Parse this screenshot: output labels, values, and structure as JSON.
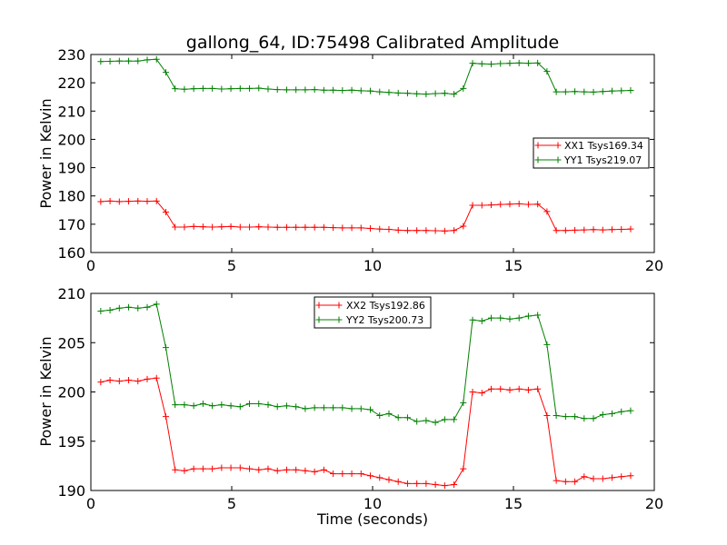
{
  "title": "gallong_64, ID:75498 Calibrated Amplitude",
  "colors": {
    "xx": "#ff0000",
    "yy": "#008000"
  },
  "chart_data": [
    {
      "type": "line",
      "ylabel": "Power in Kelvin",
      "xlabel": "",
      "xlim": [
        0,
        20
      ],
      "ylim": [
        160,
        230
      ],
      "xticks": [
        "0",
        "5",
        "10",
        "15",
        "20"
      ],
      "yticks": [
        "160",
        "170",
        "180",
        "190",
        "200",
        "210",
        "220",
        "230"
      ],
      "legend_position": "center-right",
      "x": [
        0.35,
        0.68,
        1.01,
        1.34,
        1.67,
        2.0,
        2.33,
        2.66,
        2.99,
        3.32,
        3.65,
        3.98,
        4.31,
        4.64,
        4.97,
        5.3,
        5.63,
        5.96,
        6.29,
        6.62,
        6.95,
        7.28,
        7.61,
        7.94,
        8.27,
        8.6,
        8.93,
        9.26,
        9.59,
        9.92,
        10.25,
        10.58,
        10.91,
        11.24,
        11.57,
        11.9,
        12.23,
        12.56,
        12.89,
        13.22,
        13.55,
        13.88,
        14.21,
        14.54,
        14.87,
        15.2,
        15.53,
        15.86,
        16.19,
        16.52,
        16.85,
        17.18,
        17.51,
        17.84,
        18.17,
        18.5,
        18.83,
        19.16
      ],
      "series": [
        {
          "name": "XX1 Tsys169.34",
          "color": "#ff0000",
          "values": [
            178.0,
            178.2,
            178.0,
            178.1,
            178.2,
            178.1,
            178.2,
            174.3,
            169.0,
            169.0,
            169.2,
            169.1,
            169.0,
            169.1,
            169.2,
            169.0,
            169.0,
            169.1,
            169.0,
            168.9,
            168.9,
            168.9,
            168.9,
            168.9,
            168.9,
            168.8,
            168.7,
            168.7,
            168.7,
            168.5,
            168.3,
            168.2,
            167.9,
            167.8,
            167.8,
            167.8,
            167.7,
            167.6,
            167.8,
            169.3,
            176.7,
            176.7,
            176.8,
            177.0,
            177.1,
            177.2,
            177.0,
            177.1,
            174.5,
            167.8,
            167.8,
            167.9,
            168.0,
            168.1,
            168.0,
            168.1,
            168.2,
            168.3
          ]
        },
        {
          "name": "YY1 Tsys219.07",
          "color": "#008000",
          "values": [
            227.5,
            227.6,
            227.7,
            227.7,
            227.7,
            228.1,
            228.3,
            223.7,
            217.9,
            217.7,
            217.9,
            218.0,
            218.0,
            217.8,
            217.9,
            218.0,
            218.0,
            218.1,
            217.8,
            217.6,
            217.5,
            217.5,
            217.5,
            217.6,
            217.4,
            217.4,
            217.3,
            217.4,
            217.2,
            217.1,
            216.8,
            216.6,
            216.4,
            216.3,
            216.1,
            216.0,
            216.2,
            216.3,
            216.0,
            218.0,
            226.9,
            226.7,
            226.6,
            226.8,
            226.9,
            227.0,
            226.9,
            227.0,
            224.0,
            216.8,
            216.8,
            216.9,
            216.8,
            216.7,
            216.9,
            217.1,
            217.2,
            217.3
          ]
        }
      ]
    },
    {
      "type": "line",
      "ylabel": "Power in Kelvin",
      "xlabel": "Time (seconds)",
      "xlim": [
        0,
        20
      ],
      "ylim": [
        190,
        210
      ],
      "xticks": [
        "0",
        "5",
        "10",
        "15",
        "20"
      ],
      "yticks": [
        "190",
        "195",
        "200",
        "205",
        "210"
      ],
      "legend_position": "upper-center",
      "x": [
        0.35,
        0.68,
        1.01,
        1.34,
        1.67,
        2.0,
        2.33,
        2.66,
        2.99,
        3.32,
        3.65,
        3.98,
        4.31,
        4.64,
        4.97,
        5.3,
        5.63,
        5.96,
        6.29,
        6.62,
        6.95,
        7.28,
        7.61,
        7.94,
        8.27,
        8.6,
        8.93,
        9.26,
        9.59,
        9.92,
        10.25,
        10.58,
        10.91,
        11.24,
        11.57,
        11.9,
        12.23,
        12.56,
        12.89,
        13.22,
        13.55,
        13.88,
        14.21,
        14.54,
        14.87,
        15.2,
        15.53,
        15.86,
        16.19,
        16.52,
        16.85,
        17.18,
        17.51,
        17.84,
        18.17,
        18.5,
        18.83,
        19.16
      ],
      "series": [
        {
          "name": "XX2 Tsys192.86",
          "color": "#ff0000",
          "values": [
            201.0,
            201.2,
            201.1,
            201.2,
            201.1,
            201.3,
            201.4,
            197.5,
            192.1,
            192.0,
            192.2,
            192.2,
            192.2,
            192.3,
            192.3,
            192.3,
            192.2,
            192.1,
            192.2,
            192.0,
            192.1,
            192.1,
            192.0,
            191.9,
            192.1,
            191.7,
            191.7,
            191.7,
            191.7,
            191.5,
            191.3,
            191.1,
            190.9,
            190.7,
            190.7,
            190.7,
            190.6,
            190.5,
            190.6,
            192.2,
            200.0,
            199.9,
            200.3,
            200.3,
            200.2,
            200.3,
            200.2,
            200.3,
            197.6,
            191.0,
            190.9,
            190.9,
            191.4,
            191.2,
            191.2,
            191.3,
            191.4,
            191.5
          ]
        },
        {
          "name": "YY2 Tsys200.73",
          "color": "#008000",
          "values": [
            208.2,
            208.3,
            208.5,
            208.6,
            208.5,
            208.6,
            208.9,
            204.5,
            198.7,
            198.7,
            198.6,
            198.8,
            198.6,
            198.7,
            198.6,
            198.5,
            198.8,
            198.8,
            198.7,
            198.5,
            198.6,
            198.5,
            198.3,
            198.4,
            198.4,
            198.4,
            198.4,
            198.3,
            198.3,
            198.2,
            197.6,
            197.8,
            197.4,
            197.4,
            197.0,
            197.1,
            196.9,
            197.2,
            197.2,
            198.9,
            207.3,
            207.2,
            207.5,
            207.5,
            207.4,
            207.5,
            207.7,
            207.8,
            204.8,
            197.6,
            197.5,
            197.5,
            197.3,
            197.3,
            197.7,
            197.8,
            198.0,
            198.1
          ]
        }
      ]
    }
  ]
}
